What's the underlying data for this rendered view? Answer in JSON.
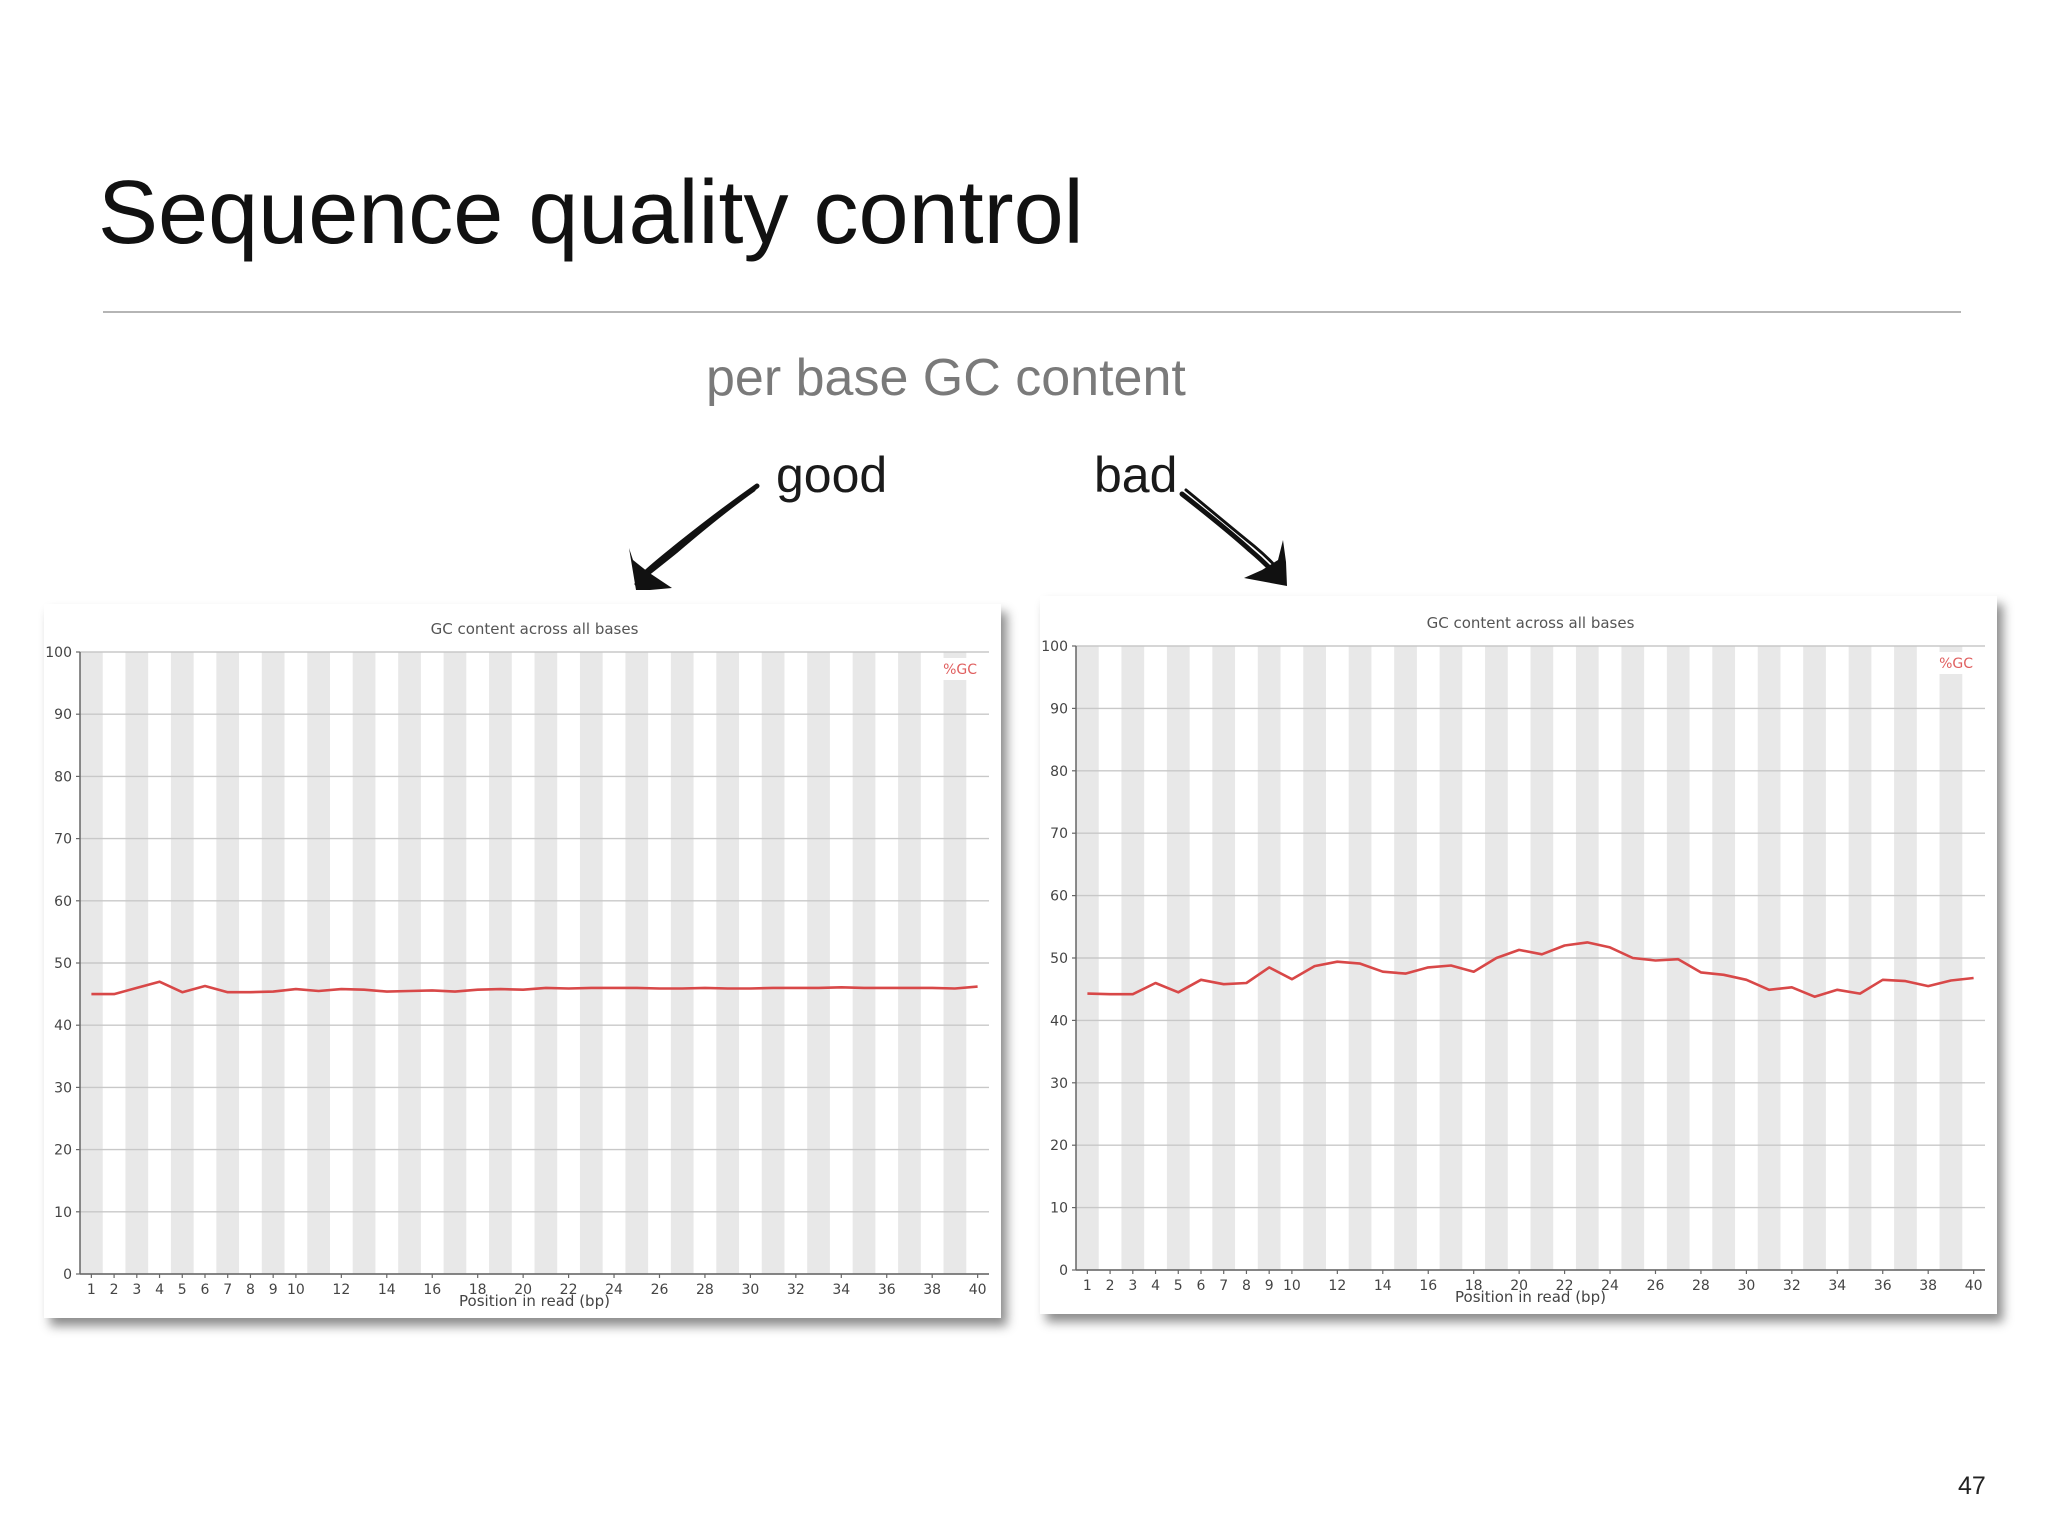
{
  "slide": {
    "title": "Sequence quality control",
    "subtitle": "per base GC content",
    "label_good": "good",
    "label_bad": "bad",
    "page_number": "47"
  },
  "colors": {
    "line": "#d84848",
    "legend": "#e06060",
    "stripe": "#e8e8e8",
    "grid": "#c8c8c8",
    "axis": "#666666"
  },
  "icons": [
    "arrow-down-left-icon",
    "arrow-down-right-icon"
  ],
  "chart_data": [
    {
      "id": "good",
      "type": "line",
      "title": "GC content across all bases",
      "xlabel": "Position in read (bp)",
      "ylabel": "",
      "ylim": [
        0,
        100
      ],
      "yticks": [
        0,
        10,
        20,
        30,
        40,
        50,
        60,
        70,
        80,
        90,
        100
      ],
      "xticks": [
        "1",
        "2",
        "3",
        "4",
        "5",
        "6",
        "7",
        "8",
        "9",
        "10",
        "12",
        "14",
        "16",
        "18",
        "20",
        "22",
        "24",
        "26",
        "28",
        "30",
        "32",
        "34",
        "36",
        "38",
        "40"
      ],
      "x": [
        1,
        2,
        3,
        4,
        5,
        6,
        7,
        8,
        9,
        10,
        11,
        12,
        13,
        14,
        15,
        16,
        17,
        18,
        19,
        20,
        21,
        22,
        23,
        24,
        25,
        26,
        27,
        28,
        29,
        30,
        31,
        32,
        33,
        34,
        35,
        36,
        37,
        38,
        39,
        40
      ],
      "grid": true,
      "legend_position": "top-right",
      "series": [
        {
          "name": "%GC",
          "values": [
            45,
            45,
            46,
            47,
            45.3,
            46.3,
            45.3,
            45.3,
            45.4,
            45.8,
            45.5,
            45.8,
            45.7,
            45.4,
            45.5,
            45.6,
            45.4,
            45.7,
            45.8,
            45.7,
            46,
            45.9,
            46,
            46,
            46,
            45.9,
            45.9,
            46,
            45.9,
            45.9,
            46,
            46,
            46,
            46.1,
            46,
            46,
            46,
            46,
            45.9,
            46.2
          ]
        }
      ]
    },
    {
      "id": "bad",
      "type": "line",
      "title": "GC content across all bases",
      "xlabel": "Position in read (bp)",
      "ylabel": "",
      "ylim": [
        0,
        100
      ],
      "yticks": [
        0,
        10,
        20,
        30,
        40,
        50,
        60,
        70,
        80,
        90,
        100
      ],
      "xticks": [
        "1",
        "2",
        "3",
        "4",
        "5",
        "6",
        "7",
        "8",
        "9",
        "10",
        "12",
        "14",
        "16",
        "18",
        "20",
        "22",
        "24",
        "26",
        "28",
        "30",
        "32",
        "34",
        "36",
        "38",
        "40"
      ],
      "x": [
        1,
        2,
        3,
        4,
        5,
        6,
        7,
        8,
        9,
        10,
        11,
        12,
        13,
        14,
        15,
        16,
        17,
        18,
        19,
        20,
        21,
        22,
        23,
        24,
        25,
        26,
        27,
        28,
        29,
        30,
        31,
        32,
        33,
        34,
        35,
        36,
        37,
        38,
        39,
        40
      ],
      "grid": true,
      "legend_position": "top-right",
      "series": [
        {
          "name": "%GC",
          "values": [
            44.3,
            44.2,
            44.2,
            46,
            44.5,
            46.5,
            45.8,
            46,
            48.5,
            46.6,
            48.7,
            49.4,
            49.1,
            47.8,
            47.5,
            48.5,
            48.8,
            47.8,
            50,
            51.3,
            50.6,
            52,
            52.5,
            51.7,
            50,
            49.6,
            49.8,
            47.7,
            47.3,
            46.5,
            44.9,
            45.3,
            43.8,
            44.9,
            44.3,
            46.5,
            46.3,
            45.5,
            46.4,
            46.8
          ]
        }
      ]
    }
  ]
}
